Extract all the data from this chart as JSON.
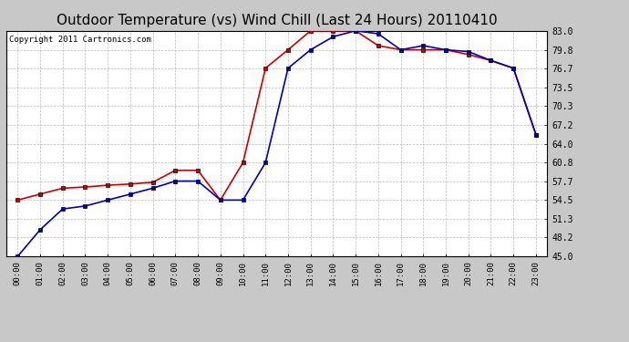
{
  "title": "Outdoor Temperature (vs) Wind Chill (Last 24 Hours) 20110410",
  "copyright": "Copyright 2011 Cartronics.com",
  "x_labels": [
    "00:00",
    "01:00",
    "02:00",
    "03:00",
    "04:00",
    "05:00",
    "06:00",
    "07:00",
    "08:00",
    "09:00",
    "10:00",
    "11:00",
    "12:00",
    "13:00",
    "14:00",
    "15:00",
    "16:00",
    "17:00",
    "18:00",
    "19:00",
    "20:00",
    "21:00",
    "22:00",
    "23:00"
  ],
  "temp_red": [
    54.5,
    55.5,
    56.5,
    56.7,
    57.0,
    57.2,
    57.5,
    59.5,
    59.5,
    54.5,
    60.8,
    76.7,
    79.8,
    83.0,
    83.0,
    83.0,
    80.5,
    79.8,
    79.8,
    79.8,
    79.0,
    78.0,
    76.7,
    65.5
  ],
  "wind_chill_blue": [
    45.0,
    49.5,
    53.0,
    53.5,
    54.5,
    55.5,
    56.5,
    57.7,
    57.7,
    54.5,
    54.5,
    60.8,
    76.7,
    79.8,
    82.0,
    83.0,
    82.5,
    79.8,
    80.5,
    79.8,
    79.5,
    78.0,
    76.7,
    65.5
  ],
  "ylim": [
    45.0,
    83.0
  ],
  "yticks": [
    45.0,
    48.2,
    51.3,
    54.5,
    57.7,
    60.8,
    64.0,
    67.2,
    70.3,
    73.5,
    76.7,
    79.8,
    83.0
  ],
  "bg_color": "#c8c8c8",
  "plot_bg": "#ffffff",
  "grid_color": "#aaaaaa",
  "red_color": "#cc0000",
  "blue_color": "#0000bb",
  "title_fontsize": 11,
  "copyright_fontsize": 6.5,
  "marker_size": 3.5,
  "line_width": 1.2
}
